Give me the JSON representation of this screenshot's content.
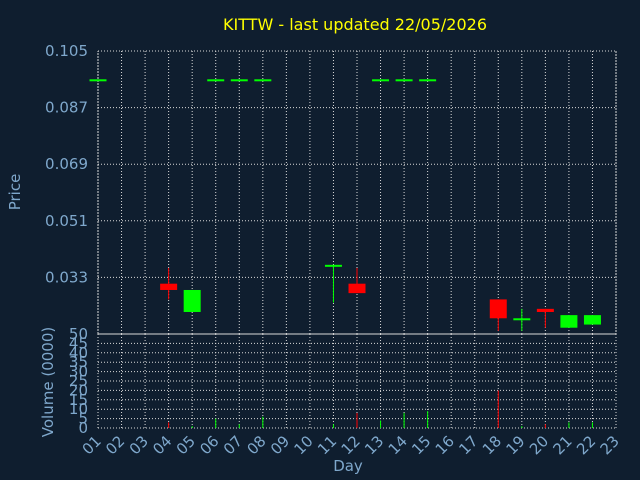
{
  "chart_data": {
    "type": "candlestick",
    "title": "KITTW - last updated 22/05/2026",
    "ylabel": "Price",
    "volume_label": "Volume (0000)",
    "xlabel": "Day",
    "price_ticks": [
      "0.105",
      "0.087",
      "0.069",
      "0.051",
      "0.033"
    ],
    "price_ylim": [
      0.015,
      0.105
    ],
    "volume_ticks": [
      "50",
      "45",
      "40",
      "35",
      "30",
      "25",
      "20",
      "15",
      "10",
      "5",
      "0"
    ],
    "volume_ylim": [
      0,
      50
    ],
    "x_ticks": [
      "01",
      "02",
      "03",
      "04",
      "05",
      "06",
      "07",
      "08",
      "09",
      "10",
      "11",
      "12",
      "13",
      "14",
      "15",
      "16",
      "17",
      "18",
      "19",
      "20",
      "21",
      "22",
      "23"
    ],
    "grid": true,
    "colors": {
      "up": "#00ff00",
      "down": "#ff0000",
      "background": "#0f1e2f",
      "grid": "#d9d9d9",
      "axis_text": "#7fa8cc",
      "title": "#ffff00"
    },
    "candles": [
      {
        "day": 1,
        "open": 0.096,
        "close": 0.096,
        "high": 0.096,
        "low": 0.096,
        "volume": 0
      },
      {
        "day": 4,
        "open": 0.031,
        "close": 0.029,
        "high": 0.036,
        "low": 0.026,
        "volume": 3
      },
      {
        "day": 5,
        "open": 0.022,
        "close": 0.029,
        "high": 0.029,
        "low": 0.022,
        "volume": 1
      },
      {
        "day": 6,
        "open": 0.096,
        "close": 0.096,
        "high": 0.096,
        "low": 0.096,
        "volume": 5
      },
      {
        "day": 7,
        "open": 0.096,
        "close": 0.096,
        "high": 0.096,
        "low": 0.096,
        "volume": 2
      },
      {
        "day": 8,
        "open": 0.096,
        "close": 0.096,
        "high": 0.096,
        "low": 0.096,
        "volume": 6
      },
      {
        "day": 11,
        "open": 0.037,
        "close": 0.037,
        "high": 0.037,
        "low": 0.025,
        "volume": 2
      },
      {
        "day": 12,
        "open": 0.031,
        "close": 0.028,
        "high": 0.036,
        "low": 0.028,
        "volume": 8
      },
      {
        "day": 13,
        "open": 0.096,
        "close": 0.096,
        "high": 0.096,
        "low": 0.096,
        "volume": 4
      },
      {
        "day": 14,
        "open": 0.096,
        "close": 0.096,
        "high": 0.096,
        "low": 0.096,
        "volume": 8
      },
      {
        "day": 15,
        "open": 0.096,
        "close": 0.096,
        "high": 0.096,
        "low": 0.096,
        "volume": 9
      },
      {
        "day": 18,
        "open": 0.026,
        "close": 0.02,
        "high": 0.026,
        "low": 0.016,
        "volume": 20
      },
      {
        "day": 19,
        "open": 0.02,
        "close": 0.02,
        "high": 0.023,
        "low": 0.016,
        "volume": 1
      },
      {
        "day": 20,
        "open": 0.023,
        "close": 0.022,
        "high": 0.023,
        "low": 0.017,
        "volume": 2
      },
      {
        "day": 21,
        "open": 0.017,
        "close": 0.021,
        "high": 0.021,
        "low": 0.017,
        "volume": 3
      },
      {
        "day": 22,
        "open": 0.018,
        "close": 0.021,
        "high": 0.021,
        "low": 0.018,
        "volume": 3
      }
    ]
  }
}
